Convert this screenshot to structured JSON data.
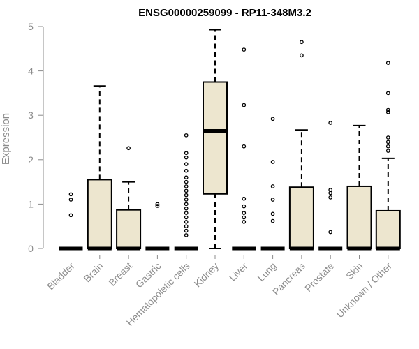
{
  "chart_data": {
    "type": "boxplot",
    "title": "ENSG00000259099 - RP11-348M3.2",
    "ylabel": "Expression",
    "xlabel": "",
    "ylim": [
      0,
      5
    ],
    "yticks": [
      0,
      1,
      2,
      3,
      4,
      5
    ],
    "box_fill": "#ede6cf",
    "categories": [
      "Bladder",
      "Brain",
      "Breast",
      "Gastric",
      "Hematopoietic cells",
      "Kidney",
      "Liver",
      "Lung",
      "Pancreas",
      "Prostate",
      "Skin",
      "Unknown / Other"
    ],
    "boxes": [
      {
        "category": "Bladder",
        "whisker_low": 0,
        "q1": 0,
        "median": 0,
        "q3": 0,
        "whisker_high": 0,
        "outliers": [
          0.75,
          1.1,
          1.22
        ]
      },
      {
        "category": "Brain",
        "whisker_low": 0,
        "q1": 0,
        "median": 0,
        "q3": 1.55,
        "whisker_high": 3.66,
        "outliers": []
      },
      {
        "category": "Breast",
        "whisker_low": 0,
        "q1": 0,
        "median": 0,
        "q3": 0.87,
        "whisker_high": 1.5,
        "outliers": [
          2.26
        ]
      },
      {
        "category": "Gastric",
        "whisker_low": 0,
        "q1": 0,
        "median": 0,
        "q3": 0,
        "whisker_high": 0,
        "outliers": [
          0.96,
          1.0
        ]
      },
      {
        "category": "Hematopoietic cells",
        "whisker_low": 0,
        "q1": 0,
        "median": 0,
        "q3": 0,
        "whisker_high": 0,
        "outliers": [
          0.3,
          0.4,
          0.5,
          0.6,
          0.7,
          0.8,
          0.9,
          1.0,
          1.1,
          1.2,
          1.3,
          1.4,
          1.5,
          1.6,
          1.75,
          1.9,
          2.05,
          2.15,
          2.55
        ]
      },
      {
        "category": "Kidney",
        "whisker_low": 0,
        "q1": 1.23,
        "median": 2.65,
        "q3": 3.75,
        "whisker_high": 4.93,
        "outliers": []
      },
      {
        "category": "Liver",
        "whisker_low": 0,
        "q1": 0,
        "median": 0,
        "q3": 0,
        "whisker_high": 0,
        "outliers": [
          0.6,
          0.7,
          0.8,
          0.95,
          1.12,
          2.3,
          3.23,
          4.48
        ]
      },
      {
        "category": "Lung",
        "whisker_low": 0,
        "q1": 0,
        "median": 0,
        "q3": 0,
        "whisker_high": 0,
        "outliers": [
          0.62,
          0.78,
          1.1,
          1.4,
          1.95,
          2.92
        ]
      },
      {
        "category": "Pancreas",
        "whisker_low": 0,
        "q1": 0,
        "median": 0,
        "q3": 1.38,
        "whisker_high": 2.67,
        "outliers": [
          4.35,
          4.65
        ]
      },
      {
        "category": "Prostate",
        "whisker_low": 0,
        "q1": 0,
        "median": 0,
        "q3": 0,
        "whisker_high": 0,
        "outliers": [
          0.37,
          1.15,
          1.25,
          1.32,
          2.83
        ]
      },
      {
        "category": "Skin",
        "whisker_low": 0,
        "q1": 0,
        "median": 0,
        "q3": 1.4,
        "whisker_high": 2.77,
        "outliers": []
      },
      {
        "category": "Unknown / Other",
        "whisker_low": 0,
        "q1": 0,
        "median": 0,
        "q3": 0.85,
        "whisker_high": 2.03,
        "outliers": [
          2.2,
          2.3,
          2.4,
          2.5,
          3.07,
          3.12,
          3.5,
          4.18
        ]
      }
    ]
  }
}
